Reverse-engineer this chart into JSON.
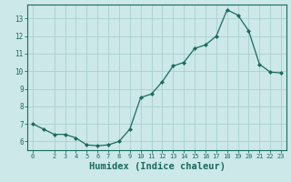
{
  "x": [
    0,
    1,
    2,
    3,
    4,
    5,
    6,
    7,
    8,
    9,
    10,
    11,
    12,
    13,
    14,
    15,
    16,
    17,
    18,
    19,
    20,
    21,
    22,
    23
  ],
  "y": [
    7.0,
    6.7,
    6.4,
    6.4,
    6.2,
    5.8,
    5.75,
    5.8,
    6.0,
    6.7,
    8.5,
    8.7,
    9.4,
    10.3,
    10.5,
    11.3,
    11.5,
    12.0,
    13.5,
    13.2,
    12.3,
    10.4,
    9.95,
    9.9
  ],
  "line_color": "#1a6b5e",
  "marker": "D",
  "marker_size": 2.0,
  "bg_color": "#cce8e8",
  "grid_color": "#aacfcf",
  "tick_color": "#1a6b5e",
  "xlabel": "Humidex (Indice chaleur)",
  "xlabel_fontsize": 7.5,
  "ylim": [
    5.5,
    13.8
  ],
  "xlim": [
    -0.5,
    23.5
  ],
  "yticks": [
    6,
    7,
    8,
    9,
    10,
    11,
    12,
    13
  ],
  "xticks": [
    0,
    2,
    3,
    4,
    5,
    6,
    7,
    8,
    9,
    10,
    11,
    12,
    13,
    14,
    15,
    16,
    17,
    18,
    19,
    20,
    21,
    22,
    23
  ]
}
